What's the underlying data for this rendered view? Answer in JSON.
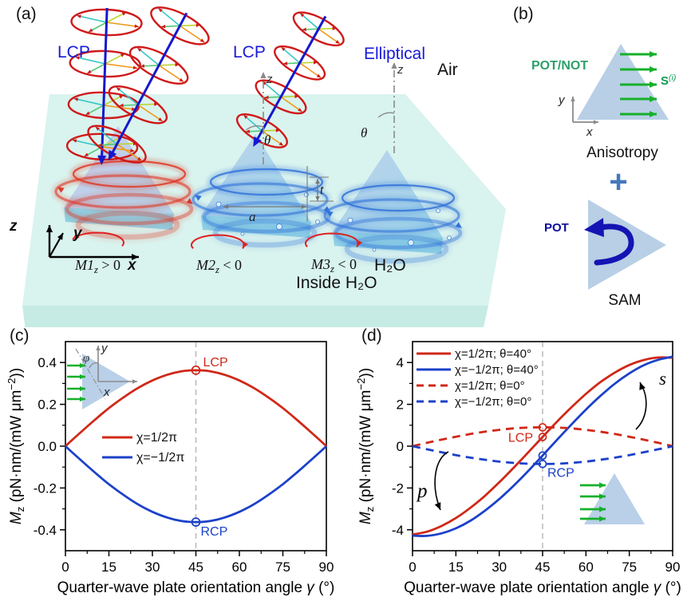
{
  "figure": {
    "panel_tags": {
      "a": "(a)",
      "b": "(b)",
      "c": "(c)",
      "d": "(d)"
    }
  },
  "panel_a": {
    "beams": [
      "LCP",
      "LCP",
      "Elliptical"
    ],
    "beam_label_color": "#1a1ad8",
    "medium_labels": {
      "air": "Air",
      "water": "H₂O",
      "inside": "Inside H₂O"
    },
    "axis_labels": {
      "z": "z",
      "y": "y",
      "x": "x"
    },
    "wave_axis_label": "z",
    "incidence_angle_label": "θ",
    "dimension_labels": {
      "side": "a",
      "thickness": "t"
    },
    "torque_labels": [
      {
        "parts": [
          {
            "t": "M1",
            "i": 1
          },
          {
            "t": "z",
            "sub": 1,
            "i": 1
          },
          {
            "t": " > 0"
          }
        ],
        "spin": "ccw"
      },
      {
        "parts": [
          {
            "t": "M2",
            "i": 1
          },
          {
            "t": "z",
            "sub": 1,
            "i": 1
          },
          {
            "t": " < 0"
          }
        ],
        "spin": "cw"
      },
      {
        "parts": [
          {
            "t": "M3",
            "i": 1
          },
          {
            "t": "z",
            "sub": 1,
            "i": 1
          },
          {
            "t": " < 0"
          }
        ],
        "spin": "cw"
      }
    ],
    "colors": {
      "water_top": "#d9f3ee",
      "water_front": "#c6ebe4",
      "helix": "#d01818",
      "beam": "#1518cc",
      "flow_red": "#e03826",
      "flow_blue": "#3173d8",
      "arrow_red": "#e02020",
      "axis_gray": "#8a8a8a"
    }
  },
  "panel_b": {
    "top": {
      "label": "POT/NOT",
      "vector_label_parts": [
        {
          "t": "S",
          "b": 1
        },
        {
          "t": "(i)",
          "sup": 1,
          "i": 1
        }
      ],
      "caption": "Anisotropy",
      "axes": {
        "x": "x",
        "y": "y"
      }
    },
    "plus": "+",
    "bottom": {
      "label": "POT",
      "caption": "SAM"
    },
    "colors": {
      "green": "#16b02a",
      "green_text": "#2fa06a",
      "vector_green": "#0f9a55",
      "triangle": "#b8cfe6",
      "plus": "#4678bc",
      "pot": "#0a0aa0",
      "sam_arrow": "#1414b4"
    }
  },
  "chart_data": [
    {
      "id": "c",
      "type": "line",
      "xlabel_parts": [
        {
          "t": "Quarter-wave plate orientation angle "
        },
        {
          "t": "γ",
          "i": 1
        },
        {
          "t": " (°)"
        }
      ],
      "ylabel_parts": [
        {
          "t": "M",
          "i": 1
        },
        {
          "t": "z",
          "sub": 1
        },
        {
          "t": " (pN·nm/(mW μm"
        },
        {
          "t": "−2",
          "sup": 1
        },
        {
          "t": "))"
        }
      ],
      "xlim": [
        0,
        90
      ],
      "ylim": [
        -0.5,
        0.5
      ],
      "xticks": [
        0,
        15,
        30,
        45,
        60,
        75,
        90
      ],
      "xtick_labels": [
        "0",
        "15",
        "30",
        "45",
        "60",
        "75",
        "90"
      ],
      "yticks": [
        0.4,
        0.2,
        0,
        -0.2,
        -0.4
      ],
      "ytick_labels": [
        "0.4",
        "0.2",
        "0.0",
        "-0.2",
        "-0.4"
      ],
      "grid": false,
      "legend_position": "center-left",
      "vline_x": 45,
      "x": [
        0,
        5,
        10,
        15,
        20,
        25,
        30,
        35,
        40,
        45,
        50,
        55,
        60,
        65,
        70,
        75,
        80,
        85,
        90
      ],
      "series": [
        {
          "name": "χ=1/2π",
          "color": "#d02818",
          "dash": false,
          "values": [
            0,
            0.063,
            0.124,
            0.182,
            0.233,
            0.278,
            0.314,
            0.341,
            0.358,
            0.363,
            0.358,
            0.341,
            0.314,
            0.278,
            0.233,
            0.182,
            0.124,
            0.063,
            0
          ]
        },
        {
          "name": "χ=−1/2π",
          "color": "#1b41c9",
          "dash": false,
          "values": [
            0,
            -0.063,
            -0.124,
            -0.182,
            -0.233,
            -0.278,
            -0.314,
            -0.341,
            -0.358,
            -0.363,
            -0.358,
            -0.341,
            -0.314,
            -0.278,
            -0.233,
            -0.182,
            -0.124,
            -0.063,
            0
          ]
        }
      ],
      "markers": [
        {
          "x": 45,
          "y": 0.363,
          "color": "#d02818",
          "label": "LCP"
        },
        {
          "x": 45,
          "y": -0.363,
          "color": "#1b41c9",
          "label": "RCP"
        }
      ],
      "inset_labels": {
        "angle": "φ",
        "x_axis": "x",
        "y_axis": "y"
      }
    },
    {
      "id": "d",
      "type": "line",
      "xlabel_parts": [
        {
          "t": "Quarter-wave plate orientation angle "
        },
        {
          "t": "γ",
          "i": 1
        },
        {
          "t": " (°)"
        }
      ],
      "ylabel_parts": [
        {
          "t": "M",
          "i": 1
        },
        {
          "t": "z",
          "sub": 1
        },
        {
          "t": " (pN·nm/(mW μm"
        },
        {
          "t": "−2",
          "sup": 1
        },
        {
          "t": "))"
        }
      ],
      "xlim": [
        0,
        90
      ],
      "ylim": [
        -5,
        5
      ],
      "xticks": [
        0,
        15,
        30,
        45,
        60,
        75,
        90
      ],
      "xtick_labels": [
        "0",
        "15",
        "30",
        "45",
        "60",
        "75",
        "90"
      ],
      "yticks": [
        4,
        2,
        0,
        -2,
        -4
      ],
      "ytick_labels": [
        "4",
        "2",
        "0",
        "-2",
        "-4"
      ],
      "grid": false,
      "legend_position": "top-left",
      "vline_x": 45,
      "x": [
        0,
        5,
        10,
        15,
        20,
        25,
        30,
        35,
        40,
        45,
        50,
        55,
        60,
        65,
        70,
        75,
        80,
        85,
        90
      ],
      "series": [
        {
          "name": "χ=1/2π; θ=40°",
          "color": "#d02818",
          "dash": false,
          "values": [
            -4.23,
            -4.09,
            -3.82,
            -3.44,
            -2.95,
            -2.38,
            -1.73,
            -1.03,
            -0.3,
            0.44,
            1.17,
            1.86,
            2.5,
            3.06,
            3.52,
            3.88,
            4.12,
            4.24,
            4.23
          ]
        },
        {
          "name": "χ=−1/2π; θ=40°",
          "color": "#1b41c9",
          "dash": false,
          "values": [
            -4.28,
            -4.29,
            -4.17,
            -3.93,
            -3.57,
            -3.09,
            -2.53,
            -1.89,
            -1.19,
            -0.45,
            0.3,
            1.04,
            1.75,
            2.4,
            2.99,
            3.48,
            3.87,
            4.13,
            4.28
          ]
        },
        {
          "name": "χ=1/2π; θ=0°",
          "color": "#d02818",
          "dash": true,
          "values": [
            0,
            0.16,
            0.31,
            0.45,
            0.58,
            0.69,
            0.78,
            0.85,
            0.89,
            0.9,
            0.89,
            0.85,
            0.78,
            0.69,
            0.58,
            0.45,
            0.31,
            0.16,
            0
          ]
        },
        {
          "name": "χ=−1/2π; θ=0°",
          "color": "#1b41c9",
          "dash": true,
          "values": [
            0,
            -0.15,
            -0.29,
            -0.43,
            -0.55,
            -0.65,
            -0.74,
            -0.8,
            -0.84,
            -0.85,
            -0.84,
            -0.8,
            -0.74,
            -0.65,
            -0.55,
            -0.43,
            -0.29,
            -0.15,
            0
          ]
        }
      ],
      "markers": [
        {
          "x": 45,
          "y": 0.9,
          "color": "#d02818"
        },
        {
          "x": 45,
          "y": 0.44,
          "color": "#d02818",
          "label": "LCP"
        },
        {
          "x": 45,
          "y": -0.45,
          "color": "#1b41c9"
        },
        {
          "x": 45,
          "y": -0.85,
          "color": "#1b41c9",
          "label": "RCP"
        }
      ],
      "annotations": [
        {
          "text": "s"
        },
        {
          "text": "p"
        }
      ]
    }
  ]
}
